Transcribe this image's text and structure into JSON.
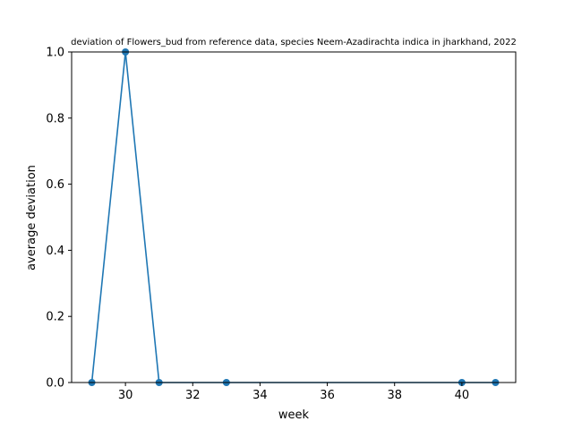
{
  "chart_data": {
    "type": "line",
    "title": "deviation of Flowers_bud from reference data, species Neem-Azadirachta indica in jharkhand, 2022",
    "xlabel": "week",
    "ylabel": "average deviation",
    "x": [
      29,
      30,
      31,
      33,
      40,
      41
    ],
    "series": [
      {
        "values": [
          0,
          1,
          0,
          0,
          0,
          0
        ],
        "color": "#1f77b4",
        "marker": "circle"
      }
    ],
    "xlim": [
      28.4,
      41.6
    ],
    "ylim": [
      0,
      1
    ],
    "xticks": [
      30,
      32,
      34,
      36,
      38,
      40
    ],
    "xtick_labels": [
      "30",
      "32",
      "34",
      "36",
      "38",
      "40"
    ],
    "yticks": [
      0,
      0.2,
      0.4,
      0.6,
      0.8,
      1.0
    ],
    "ytick_labels": [
      "0.0",
      "0.2",
      "0.4",
      "0.6",
      "0.8",
      "1.0"
    ],
    "grid": false,
    "legend": "none"
  }
}
